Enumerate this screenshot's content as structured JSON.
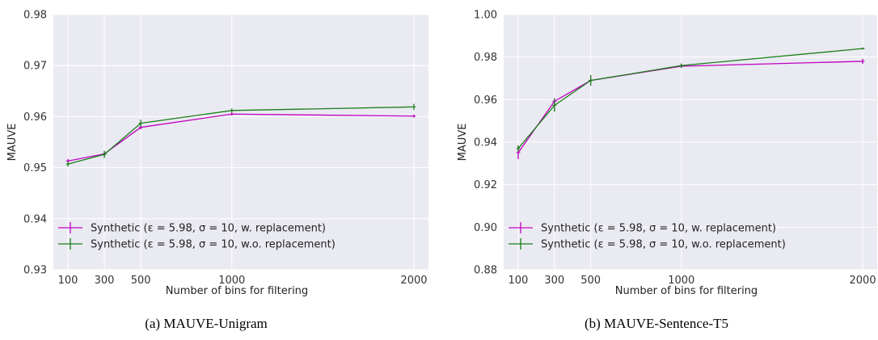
{
  "colors": {
    "plot_bg": "#EAEAF2",
    "grid": "#FFFFFF",
    "series_with_replacement": "#C000C0",
    "series_without_replacement": "#1A7F1A"
  },
  "chart_data": [
    {
      "type": "line",
      "caption": "(a) MAUVE-Unigram",
      "xlabel": "Number of bins for filtering",
      "ylabel": "MAUVE",
      "x": [
        100,
        300,
        500,
        1000,
        2000
      ],
      "xticks": [
        "100",
        "300",
        "500",
        "1000",
        "2000"
      ],
      "xlim": [
        20,
        2080
      ],
      "ylim": [
        0.93,
        0.98
      ],
      "yticks": [
        "0.93",
        "0.94",
        "0.95",
        "0.96",
        "0.97",
        "0.98"
      ],
      "grid": true,
      "legend_position": "lower-left",
      "series": [
        {
          "name": "Synthetic (ε = 5.98, σ = 10, w. replacement)",
          "color_key": "series_with_replacement",
          "values": [
            0.9513,
            0.9527,
            0.9579,
            0.9605,
            0.9601
          ],
          "errors": [
            0.0004,
            0.0004,
            0.0004,
            0.0003,
            0.0003
          ]
        },
        {
          "name": "Synthetic (ε = 5.98, σ = 10, w.o. replacement)",
          "color_key": "series_without_replacement",
          "values": [
            0.9507,
            0.9526,
            0.9587,
            0.9612,
            0.9619
          ],
          "errors": [
            0.0005,
            0.0007,
            0.0007,
            0.0004,
            0.0006
          ]
        }
      ]
    },
    {
      "type": "line",
      "caption": "(b) MAUVE-Sentence-T5",
      "xlabel": "Number of bins for filtering",
      "ylabel": "MAUVE",
      "x": [
        100,
        300,
        500,
        1000,
        2000
      ],
      "xticks": [
        "100",
        "300",
        "500",
        "1000",
        "2000"
      ],
      "xlim": [
        20,
        2080
      ],
      "ylim": [
        0.88,
        1.0
      ],
      "yticks": [
        "0.88",
        "0.90",
        "0.92",
        "0.94",
        "0.96",
        "0.98",
        "1.00"
      ],
      "grid": true,
      "legend_position": "lower-left",
      "series": [
        {
          "name": "Synthetic (ε = 5.98, σ = 10, w. replacement)",
          "color_key": "series_with_replacement",
          "values": [
            0.935,
            0.9592,
            0.969,
            0.9757,
            0.978
          ],
          "errors": [
            0.003,
            0.0015,
            0.0012,
            0.0008,
            0.0012
          ]
        },
        {
          "name": "Synthetic (ε = 5.98, σ = 10, w.o. replacement)",
          "color_key": "series_without_replacement",
          "values": [
            0.937,
            0.9573,
            0.969,
            0.976,
            0.984
          ],
          "errors": [
            0.0015,
            0.003,
            0.0025,
            0.001,
            0.0005
          ]
        }
      ]
    }
  ]
}
